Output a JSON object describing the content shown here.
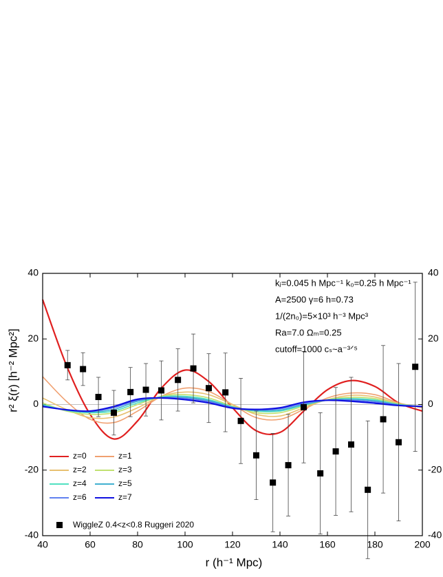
{
  "chart_data": {
    "type": "line",
    "xlabel": "r (h⁻¹ Mpc)",
    "ylabel": "r² ξ(r)   [h⁻² Mpc²]",
    "xlim": [
      40,
      200
    ],
    "xticks": [
      40,
      60,
      80,
      100,
      120,
      140,
      160,
      180,
      200
    ],
    "ylim": [
      -40,
      40
    ],
    "yticks": [
      -40,
      -20,
      0,
      20,
      40
    ],
    "zero_line": true,
    "legend": "lower left",
    "annotations": [
      "kⱼ=0.045 h Mpc⁻¹   k₀=0.25 h Mpc⁻¹",
      "A=2500      γ=6      h=0.73",
      "1/(2n₀)=5×10³ h⁻³ Mpc³",
      "Ra=7.0       Ωₘ=0.25",
      "cutoff=1000  cₛ~a⁻³ᐟ⁵"
    ],
    "x": [
      40,
      50,
      60,
      70,
      80,
      90,
      100,
      110,
      120,
      130,
      140,
      150,
      160,
      170,
      180,
      190,
      200
    ],
    "series": [
      {
        "name": "z=0",
        "color": "#e02020",
        "values": [
          32,
          12,
          -3,
          -10.5,
          -5,
          5,
          10.5,
          7,
          -1,
          -8,
          -8.5,
          -2,
          4.5,
          7.3,
          5.5,
          0.5,
          -2
        ]
      },
      {
        "name": "z=1",
        "color": "#f0a070",
        "values": [
          8.5,
          1,
          -4.5,
          -5.5,
          -2,
          2.5,
          5,
          4,
          0,
          -4,
          -4.5,
          -1.5,
          2,
          3.5,
          3,
          0.5,
          -1
        ]
      },
      {
        "name": "z=2",
        "color": "#e8c070",
        "values": [
          2,
          -1.5,
          -4,
          -3.8,
          -1,
          2.5,
          3.8,
          3,
          0,
          -3,
          -3.5,
          -1,
          1.5,
          2.8,
          2.3,
          0.3,
          -0.8
        ]
      },
      {
        "name": "z=3",
        "color": "#c0e070",
        "values": [
          0.5,
          -2,
          -3,
          -2.5,
          0,
          2.5,
          3,
          2,
          -0.5,
          -2.5,
          -2.5,
          -0.5,
          1.5,
          2.2,
          1.8,
          0.2,
          -0.7
        ]
      },
      {
        "name": "z=4",
        "color": "#50e0c0",
        "values": [
          0,
          -1.8,
          -2.5,
          -2,
          0.5,
          2.3,
          2.5,
          1.5,
          -0.7,
          -2,
          -2,
          -0.2,
          1.4,
          1.8,
          1.4,
          0,
          -0.6
        ]
      },
      {
        "name": "z=5",
        "color": "#40b0d0",
        "values": [
          -0.3,
          -1.7,
          -2.3,
          -1.5,
          1,
          2.2,
          2.2,
          1.2,
          -0.8,
          -1.8,
          -1.7,
          0,
          1.3,
          1.6,
          1.1,
          0,
          -0.6
        ]
      },
      {
        "name": "z=6",
        "color": "#6080f0",
        "values": [
          -0.5,
          -1.7,
          -2.1,
          -1,
          1.3,
          2.1,
          1.9,
          0.9,
          -0.9,
          -1.6,
          -1.3,
          0.3,
          1.3,
          1.3,
          0.8,
          -0.2,
          -0.6
        ]
      },
      {
        "name": "z=7",
        "color": "#1010e0",
        "values": [
          -0.6,
          -1.6,
          -2,
          -0.6,
          1.6,
          2,
          1.5,
          0.5,
          -1.1,
          -1.5,
          -1,
          0.7,
          1.3,
          1,
          0.4,
          -0.3,
          -0.6
        ]
      }
    ],
    "points": {
      "name": "WiggleZ 0.4<z<0.8 Ruggeri 2020",
      "color": "#000000",
      "x": [
        50.5,
        57,
        63.5,
        70,
        77,
        83.5,
        90,
        97,
        103.5,
        110,
        117,
        123.5,
        130,
        137,
        143.5,
        150,
        157,
        163.5,
        170,
        177,
        183.5,
        190,
        197
      ],
      "values": [
        12,
        10.8,
        2.3,
        -2.5,
        3.8,
        4.5,
        4.3,
        7.5,
        11,
        5,
        3.7,
        -5,
        -15.5,
        -23.8,
        -18.5,
        -0.8,
        -21,
        -14.3,
        -12.2,
        -26,
        -4.5,
        -11.5,
        11.5
      ],
      "errors": [
        4.5,
        5,
        6,
        6.8,
        7.5,
        8,
        9,
        9.5,
        10.5,
        10.5,
        12,
        13,
        13.5,
        15,
        15.5,
        17,
        18.5,
        19.5,
        20.5,
        21,
        22.5,
        24,
        25.8
      ]
    }
  }
}
